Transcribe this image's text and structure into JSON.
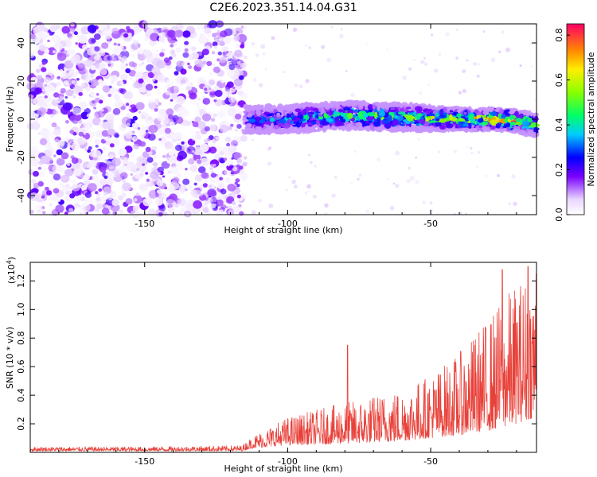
{
  "title": "C2E6.2023.351.14.04.G31",
  "chart_data": [
    {
      "type": "heatmap",
      "xlabel": "Height of straight line (km)",
      "ylabel": "Frequency (Hz)",
      "xlim": [
        -190,
        -13
      ],
      "ylim": [
        -50,
        50
      ],
      "xticks": [
        -150,
        -100,
        -50
      ],
      "yticks": [
        -40,
        -20,
        0,
        20,
        40
      ],
      "noise_region_x": [
        -190,
        -115
      ],
      "signal_band": [
        {
          "x": -115,
          "center": 0,
          "halfwidth": 5,
          "peak": 0.3
        },
        {
          "x": -100,
          "center": 0,
          "halfwidth": 5,
          "peak": 0.4
        },
        {
          "x": -80,
          "center": 2,
          "halfwidth": 5,
          "peak": 0.55
        },
        {
          "x": -60,
          "center": 1,
          "halfwidth": 5,
          "peak": 0.6
        },
        {
          "x": -40,
          "center": 0,
          "halfwidth": 4,
          "peak": 0.7
        },
        {
          "x": -25,
          "center": 0,
          "halfwidth": 4,
          "peak": 0.85
        },
        {
          "x": -13,
          "center": -3,
          "halfwidth": 4,
          "peak": 0.7
        }
      ],
      "colorbar": {
        "label": "Normalized spectral amplitude",
        "range": [
          0,
          0.85
        ],
        "ticks": [
          "0.0",
          "0.2",
          "0.4",
          "0.6",
          "0.8"
        ],
        "tick_values": [
          0,
          0.2,
          0.4,
          0.6,
          0.8
        ]
      }
    },
    {
      "type": "line",
      "xlabel": "Height of straight line (km)",
      "ylabel": "SNR (10 * v/v)",
      "scale_label": "(x10",
      "scale_exp": "4",
      "scale_close": ")",
      "xlim": [
        -190,
        -13
      ],
      "ylim": [
        0,
        1.33
      ],
      "xticks": [
        -150,
        -100,
        -50
      ],
      "yticks": [
        "0.2",
        "0.4",
        "0.6",
        "0.8",
        "1.0",
        "1.2"
      ],
      "ytick_values": [
        0.2,
        0.4,
        0.6,
        0.8,
        1.0,
        1.2
      ],
      "series_color": "#e8413a",
      "envelope_x": [
        -190,
        -150,
        -116,
        -112,
        -100,
        -80,
        -60,
        -50,
        -40,
        -30,
        -20,
        -13
      ],
      "envelope_max": [
        0.04,
        0.04,
        0.05,
        0.12,
        0.25,
        0.35,
        0.45,
        0.55,
        0.7,
        0.95,
        1.2,
        1.3
      ],
      "envelope_base": [
        0.01,
        0.01,
        0.01,
        0.03,
        0.05,
        0.06,
        0.08,
        0.1,
        0.12,
        0.15,
        0.2,
        0.25
      ],
      "peaks": [
        {
          "x": -79,
          "y": 0.75
        },
        {
          "x": -25,
          "y": 1.28
        },
        {
          "x": -16,
          "y": 1.3
        },
        {
          "x": -13,
          "y": 1.25
        }
      ]
    }
  ]
}
